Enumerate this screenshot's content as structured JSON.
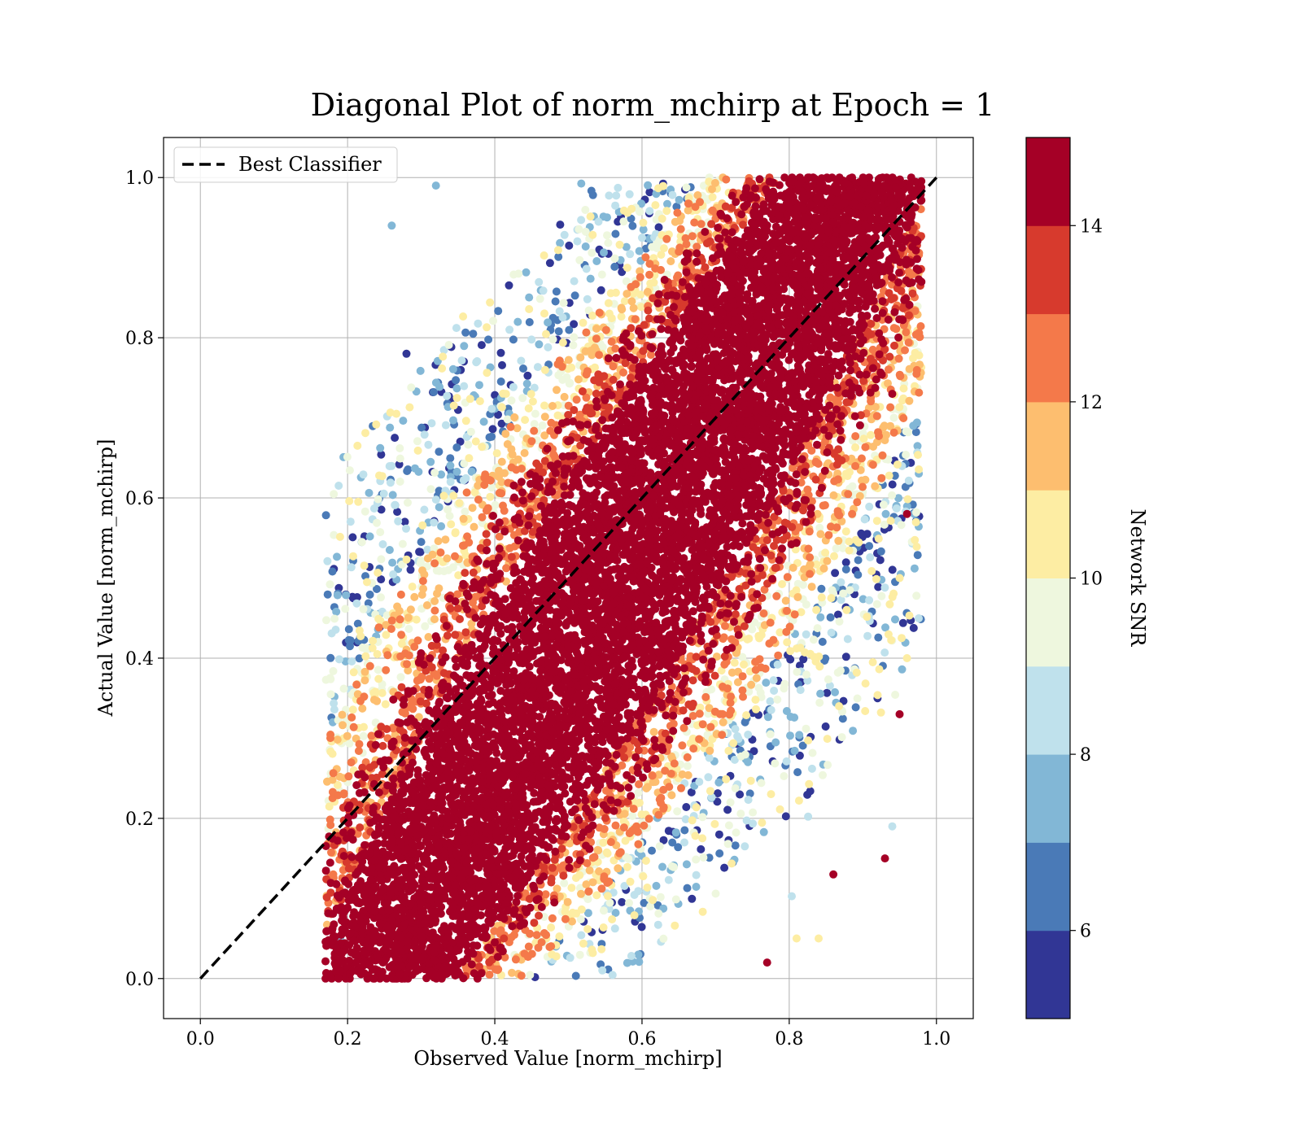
{
  "chart_data": {
    "type": "scatter",
    "title": "Diagonal Plot of norm_mchirp at Epoch = 1",
    "xlabel": "Observed Value [norm_mchirp]",
    "ylabel": "Actual Value [norm_mchirp]",
    "xlim": [
      -0.05,
      1.05
    ],
    "ylim": [
      -0.05,
      1.05
    ],
    "xticks": [
      0.0,
      0.2,
      0.4,
      0.6,
      0.8,
      1.0
    ],
    "yticks": [
      0.0,
      0.2,
      0.4,
      0.6,
      0.8,
      1.0
    ],
    "xtick_labels": [
      "0.0",
      "0.2",
      "0.4",
      "0.6",
      "0.8",
      "1.0"
    ],
    "ytick_labels": [
      "0.0",
      "0.2",
      "0.4",
      "0.6",
      "0.8",
      "1.0"
    ],
    "grid": true,
    "legend": {
      "position": "top-left",
      "entries": [
        "Best Classifier"
      ]
    },
    "reference_line": {
      "name": "Best Classifier",
      "style": "dashed",
      "color": "#000000",
      "x": [
        0.0,
        1.0
      ],
      "y": [
        0.0,
        1.0
      ]
    },
    "point_color_variable": "Network SNR",
    "colorbar": {
      "label": "Network SNR",
      "range": [
        5,
        15
      ],
      "ticks": [
        6,
        8,
        10,
        12,
        14
      ],
      "tick_labels": [
        "6",
        "8",
        "10",
        "12",
        "14"
      ],
      "bands": [
        {
          "from": 5,
          "to": 6,
          "color": "#313695"
        },
        {
          "from": 6,
          "to": 7,
          "color": "#4a7ab7"
        },
        {
          "from": 7,
          "to": 8,
          "color": "#82b7d6"
        },
        {
          "from": 8,
          "to": 9,
          "color": "#bfe1ec"
        },
        {
          "from": 9,
          "to": 10,
          "color": "#eef7de"
        },
        {
          "from": 10,
          "to": 11,
          "color": "#fdedA3"
        },
        {
          "from": 11,
          "to": 12,
          "color": "#fdbe6f"
        },
        {
          "from": 12,
          "to": 13,
          "color": "#f4794a"
        },
        {
          "from": 13,
          "to": 14,
          "color": "#d73a2d"
        },
        {
          "from": 14,
          "to": 15,
          "color": "#a50026"
        }
      ]
    },
    "distribution": {
      "observed_range": [
        0.18,
        0.97
      ],
      "actual_range": [
        0.0,
        1.0
      ],
      "main_band_center": "y ≈ 1.55·x − 0.38",
      "high_snr_region": "dense central band from (0.2, 0.0) to (0.88, 1.0)",
      "low_snr_region": "upper-left fringe (observed 0.25–0.45, actual 0.5–1.0) and lower-right fringe (observed 0.7–0.85, actual 0.05–0.35)"
    },
    "sample_points": [
      {
        "x": 0.18,
        "y": 0.32,
        "snr": 7
      },
      {
        "x": 0.26,
        "y": 0.94,
        "snr": 7
      },
      {
        "x": 0.28,
        "y": 0.78,
        "snr": 5
      },
      {
        "x": 0.32,
        "y": 0.99,
        "snr": 7
      },
      {
        "x": 0.77,
        "y": 0.02,
        "snr": 15
      },
      {
        "x": 0.94,
        "y": 0.73,
        "snr": 15
      },
      {
        "x": 0.96,
        "y": 0.58,
        "snr": 15
      },
      {
        "x": 0.97,
        "y": 0.58,
        "snr": 7
      },
      {
        "x": 0.95,
        "y": 0.5,
        "snr": 10
      },
      {
        "x": 0.96,
        "y": 0.4,
        "snr": 10
      },
      {
        "x": 0.92,
        "y": 0.35,
        "snr": 5
      },
      {
        "x": 0.95,
        "y": 0.33,
        "snr": 14
      },
      {
        "x": 0.94,
        "y": 0.19,
        "snr": 8
      },
      {
        "x": 0.93,
        "y": 0.15,
        "snr": 14
      },
      {
        "x": 0.86,
        "y": 0.13,
        "snr": 14
      },
      {
        "x": 0.81,
        "y": 0.05,
        "snr": 10
      },
      {
        "x": 0.84,
        "y": 0.05,
        "snr": 10
      },
      {
        "x": 0.19,
        "y": 0.05,
        "snr": 7
      },
      {
        "x": 0.22,
        "y": 0.16,
        "snr": 13
      }
    ]
  }
}
